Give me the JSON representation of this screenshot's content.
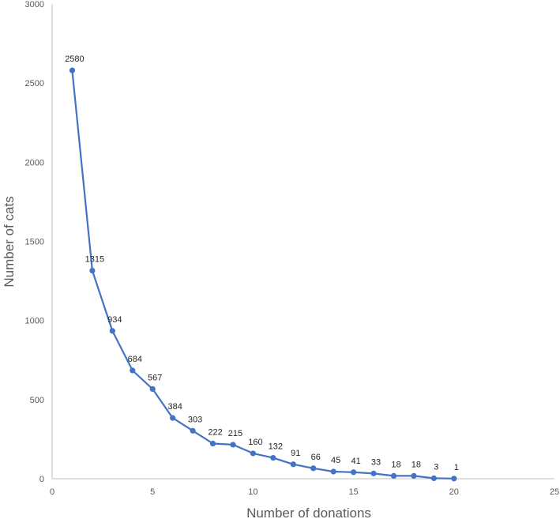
{
  "chart_data": {
    "type": "line",
    "title": "",
    "xlabel": "Number of donations",
    "ylabel": "Number of cats",
    "xlim": [
      0,
      25
    ],
    "ylim": [
      0,
      3000
    ],
    "xticks": [
      "0",
      "5",
      "10",
      "15",
      "20",
      "25"
    ],
    "yticks": [
      "0",
      "500",
      "1000",
      "1500",
      "2000",
      "2500",
      "3000"
    ],
    "grid": false,
    "legend": "none",
    "series": [
      {
        "color": "#4472C4",
        "x": [
          1,
          2,
          3,
          4,
          5,
          6,
          7,
          8,
          9,
          10,
          11,
          12,
          13,
          14,
          15,
          16,
          17,
          18,
          19,
          20
        ],
        "values": [
          2580,
          1315,
          934,
          684,
          567,
          384,
          303,
          222,
          215,
          160,
          132,
          91,
          66,
          45,
          41,
          33,
          18,
          18,
          3,
          1
        ],
        "labels": [
          "2580",
          "1315",
          "934",
          "684",
          "567",
          "384",
          "303",
          "222",
          "215",
          "160",
          "132",
          "91",
          "66",
          "45",
          "41",
          "33",
          "18",
          "18",
          "3",
          "1"
        ]
      }
    ]
  }
}
